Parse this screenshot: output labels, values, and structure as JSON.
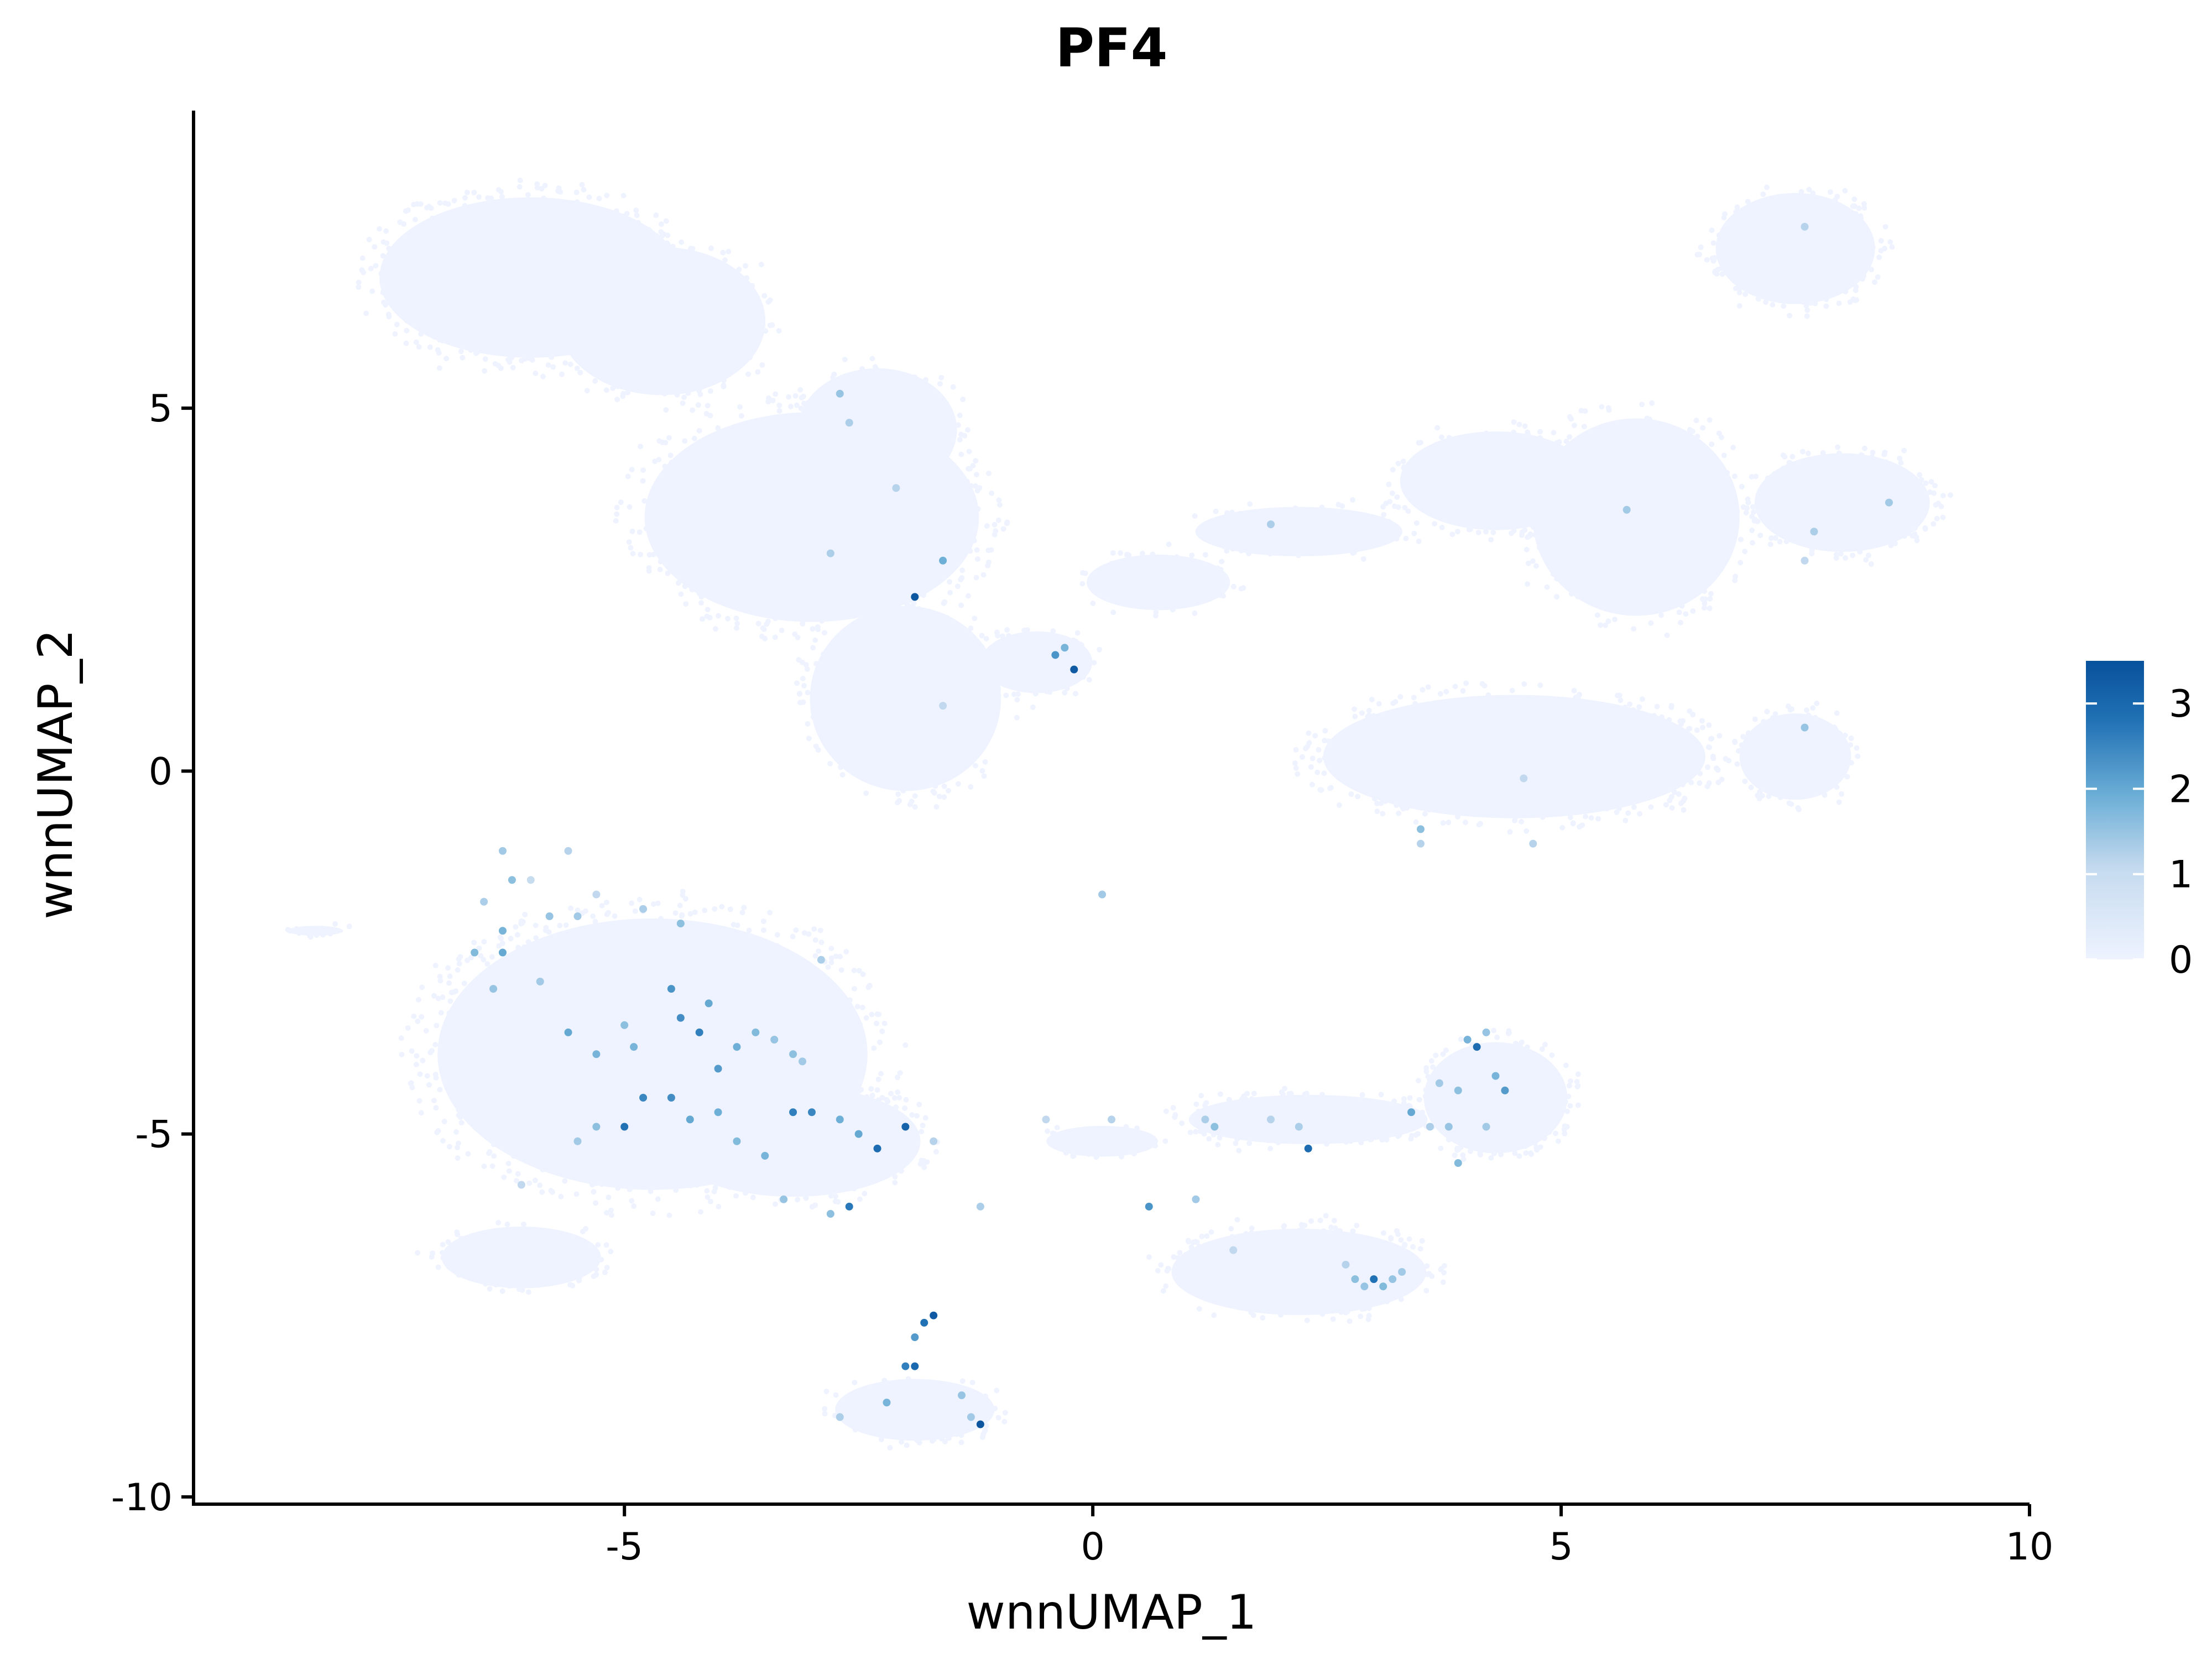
{
  "chart_data": {
    "type": "scatter",
    "title": "PF4",
    "xlabel": "wnnUMAP_1",
    "ylabel": "wnnUMAP_2",
    "xlim": [
      -9.6,
      10
    ],
    "ylim": [
      -10.1,
      9.1
    ],
    "x_ticks": [
      -5,
      0,
      5,
      10
    ],
    "x_tick_labels": [
      "-5",
      "0",
      "5",
      "10"
    ],
    "y_ticks": [
      -10,
      -5,
      0,
      5
    ],
    "y_tick_labels": [
      "-10",
      "-5",
      "0",
      "5"
    ],
    "grid": false,
    "legend": {
      "position": "right",
      "type": "colorbar",
      "min": 0,
      "max": 3.5,
      "ticks": [
        0,
        1,
        2,
        3
      ],
      "tick_labels": [
        "0",
        "1",
        "2",
        "3"
      ],
      "low_color": "#eef3ff",
      "high_color": "#08519c"
    },
    "background_color": "#eef3ff",
    "clusters": [
      {
        "cx": -6.0,
        "cy": 6.8,
        "rx": 1.9,
        "ry": 1.3,
        "n": 520
      },
      {
        "cx": -4.6,
        "cy": 6.2,
        "rx": 1.3,
        "ry": 1.2,
        "n": 260
      },
      {
        "cx": -3.0,
        "cy": 3.5,
        "rx": 2.1,
        "ry": 1.7,
        "n": 620
      },
      {
        "cx": -2.0,
        "cy": 1.0,
        "rx": 1.2,
        "ry": 1.5,
        "n": 260
      },
      {
        "cx": -2.3,
        "cy": 4.7,
        "rx": 1.0,
        "ry": 1.0,
        "n": 160
      },
      {
        "cx": -0.6,
        "cy": 1.5,
        "rx": 0.7,
        "ry": 0.5,
        "n": 100
      },
      {
        "cx": 0.7,
        "cy": 2.6,
        "rx": 0.9,
        "ry": 0.45,
        "n": 70
      },
      {
        "cx": 2.2,
        "cy": 3.3,
        "rx": 1.3,
        "ry": 0.4,
        "n": 80
      },
      {
        "cx": 4.3,
        "cy": 4.0,
        "rx": 1.2,
        "ry": 0.8,
        "n": 200
      },
      {
        "cx": 5.8,
        "cy": 3.5,
        "rx": 1.3,
        "ry": 1.6,
        "n": 320
      },
      {
        "cx": 7.5,
        "cy": 7.2,
        "rx": 1.0,
        "ry": 0.9,
        "n": 230
      },
      {
        "cx": 8.0,
        "cy": 3.7,
        "rx": 1.1,
        "ry": 0.8,
        "n": 220
      },
      {
        "cx": 7.5,
        "cy": 0.2,
        "rx": 0.7,
        "ry": 0.7,
        "n": 150
      },
      {
        "cx": 4.5,
        "cy": 0.2,
        "rx": 2.4,
        "ry": 1.0,
        "n": 520
      },
      {
        "cx": -4.7,
        "cy": -3.9,
        "rx": 2.7,
        "ry": 2.2,
        "n": 900
      },
      {
        "cx": -3.2,
        "cy": -5.1,
        "rx": 1.6,
        "ry": 0.9,
        "n": 260
      },
      {
        "cx": -6.1,
        "cy": -6.7,
        "rx": 1.0,
        "ry": 0.5,
        "n": 110
      },
      {
        "cx": -1.9,
        "cy": -8.8,
        "rx": 1.0,
        "ry": 0.5,
        "n": 110
      },
      {
        "cx": 2.3,
        "cy": -4.8,
        "rx": 1.5,
        "ry": 0.4,
        "n": 160
      },
      {
        "cx": 4.3,
        "cy": -4.5,
        "rx": 0.9,
        "ry": 0.9,
        "n": 220
      },
      {
        "cx": 2.2,
        "cy": -6.9,
        "rx": 1.6,
        "ry": 0.7,
        "n": 260
      },
      {
        "cx": 0.1,
        "cy": -5.1,
        "rx": 0.7,
        "ry": 0.25,
        "n": 40
      },
      {
        "cx": -8.3,
        "cy": -2.2,
        "rx": 0.35,
        "ry": 0.08,
        "n": 15
      }
    ],
    "expressing_points": [
      {
        "x": -6.3,
        "y": -1.1,
        "v": 1.4
      },
      {
        "x": -6.2,
        "y": -1.5,
        "v": 1.6
      },
      {
        "x": -6.0,
        "y": -1.5,
        "v": 1.0
      },
      {
        "x": -5.6,
        "y": -1.1,
        "v": 1.2
      },
      {
        "x": -6.5,
        "y": -1.8,
        "v": 1.3
      },
      {
        "x": -6.3,
        "y": -2.2,
        "v": 1.8
      },
      {
        "x": -6.3,
        "y": -2.5,
        "v": 2.0
      },
      {
        "x": -5.8,
        "y": -2.0,
        "v": 1.5
      },
      {
        "x": -5.5,
        "y": -2.0,
        "v": 1.4
      },
      {
        "x": -5.3,
        "y": -1.7,
        "v": 1.1
      },
      {
        "x": -4.8,
        "y": -1.9,
        "v": 1.3
      },
      {
        "x": -4.4,
        "y": -2.1,
        "v": 1.6
      },
      {
        "x": -6.6,
        "y": -2.5,
        "v": 1.7
      },
      {
        "x": -6.4,
        "y": -3.0,
        "v": 1.5
      },
      {
        "x": -5.9,
        "y": -2.9,
        "v": 1.4
      },
      {
        "x": -5.6,
        "y": -3.6,
        "v": 2.0
      },
      {
        "x": -5.3,
        "y": -3.9,
        "v": 1.8
      },
      {
        "x": -5.0,
        "y": -3.5,
        "v": 1.6
      },
      {
        "x": -4.9,
        "y": -3.8,
        "v": 1.8
      },
      {
        "x": -4.5,
        "y": -3.0,
        "v": 2.3
      },
      {
        "x": -4.4,
        "y": -3.4,
        "v": 2.4
      },
      {
        "x": -4.2,
        "y": -3.6,
        "v": 2.6
      },
      {
        "x": -4.1,
        "y": -3.2,
        "v": 2.0
      },
      {
        "x": -4.0,
        "y": -4.1,
        "v": 2.2
      },
      {
        "x": -3.8,
        "y": -3.8,
        "v": 1.9
      },
      {
        "x": -3.6,
        "y": -3.6,
        "v": 1.7
      },
      {
        "x": -3.4,
        "y": -3.7,
        "v": 1.5
      },
      {
        "x": -3.2,
        "y": -3.9,
        "v": 1.6
      },
      {
        "x": -3.1,
        "y": -4.0,
        "v": 1.4
      },
      {
        "x": -2.9,
        "y": -2.6,
        "v": 1.3
      },
      {
        "x": -5.0,
        "y": -4.9,
        "v": 2.8
      },
      {
        "x": -4.8,
        "y": -4.5,
        "v": 2.5
      },
      {
        "x": -4.5,
        "y": -4.5,
        "v": 2.4
      },
      {
        "x": -4.3,
        "y": -4.8,
        "v": 2.0
      },
      {
        "x": -4.0,
        "y": -4.7,
        "v": 1.9
      },
      {
        "x": -3.8,
        "y": -5.1,
        "v": 1.7
      },
      {
        "x": -3.5,
        "y": -5.3,
        "v": 1.8
      },
      {
        "x": -3.2,
        "y": -4.7,
        "v": 2.6
      },
      {
        "x": -3.0,
        "y": -4.7,
        "v": 2.5
      },
      {
        "x": -2.7,
        "y": -4.8,
        "v": 1.9
      },
      {
        "x": -2.5,
        "y": -5.0,
        "v": 2.0
      },
      {
        "x": -2.3,
        "y": -5.2,
        "v": 2.9
      },
      {
        "x": -2.0,
        "y": -4.9,
        "v": 3.1
      },
      {
        "x": -2.6,
        "y": -6.0,
        "v": 2.7
      },
      {
        "x": -3.3,
        "y": -5.9,
        "v": 1.5
      },
      {
        "x": -2.8,
        "y": -6.1,
        "v": 1.6
      },
      {
        "x": -1.7,
        "y": -5.1,
        "v": 1.2
      },
      {
        "x": -1.2,
        "y": -6.0,
        "v": 1.3
      },
      {
        "x": -5.5,
        "y": -5.1,
        "v": 1.4
      },
      {
        "x": -5.3,
        "y": -4.9,
        "v": 1.6
      },
      {
        "x": -6.1,
        "y": -5.7,
        "v": 1.1
      },
      {
        "x": -1.8,
        "y": -7.6,
        "v": 2.8
      },
      {
        "x": -1.7,
        "y": -7.5,
        "v": 3.3
      },
      {
        "x": -1.9,
        "y": -7.8,
        "v": 2.2
      },
      {
        "x": -2.0,
        "y": -8.2,
        "v": 2.6
      },
      {
        "x": -1.9,
        "y": -8.2,
        "v": 3.0
      },
      {
        "x": -2.2,
        "y": -8.7,
        "v": 1.8
      },
      {
        "x": -1.4,
        "y": -8.6,
        "v": 1.5
      },
      {
        "x": -1.3,
        "y": -8.9,
        "v": 1.4
      },
      {
        "x": -1.2,
        "y": -9.0,
        "v": 3.4
      },
      {
        "x": -2.7,
        "y": -8.9,
        "v": 1.3
      },
      {
        "x": -1.9,
        "y": 2.4,
        "v": 3.4
      },
      {
        "x": -1.6,
        "y": 2.9,
        "v": 1.9
      },
      {
        "x": -0.2,
        "y": 1.4,
        "v": 3.3
      },
      {
        "x": -0.4,
        "y": 1.6,
        "v": 2.3
      },
      {
        "x": -0.3,
        "y": 1.7,
        "v": 1.8
      },
      {
        "x": -2.7,
        "y": 5.2,
        "v": 1.5
      },
      {
        "x": -2.6,
        "y": 4.8,
        "v": 1.3
      },
      {
        "x": -2.1,
        "y": 3.9,
        "v": 1.2
      },
      {
        "x": -2.8,
        "y": 3.0,
        "v": 1.3
      },
      {
        "x": -1.6,
        "y": 0.9,
        "v": 1.1
      },
      {
        "x": 0.1,
        "y": -1.7,
        "v": 1.4
      },
      {
        "x": 1.9,
        "y": 3.4,
        "v": 1.3
      },
      {
        "x": 3.5,
        "y": -0.8,
        "v": 1.6
      },
      {
        "x": 3.5,
        "y": -1.0,
        "v": 1.2
      },
      {
        "x": 4.6,
        "y": -0.1,
        "v": 1.1
      },
      {
        "x": 4.7,
        "y": -1.0,
        "v": 1.2
      },
      {
        "x": 5.7,
        "y": 3.6,
        "v": 1.4
      },
      {
        "x": 7.6,
        "y": 7.5,
        "v": 1.2
      },
      {
        "x": 7.6,
        "y": 0.6,
        "v": 1.5
      },
      {
        "x": 7.7,
        "y": 3.3,
        "v": 1.3
      },
      {
        "x": 7.6,
        "y": 2.9,
        "v": 1.1
      },
      {
        "x": 8.5,
        "y": 3.7,
        "v": 1.4
      },
      {
        "x": 4.1,
        "y": -3.8,
        "v": 2.9
      },
      {
        "x": 4.0,
        "y": -3.7,
        "v": 1.8
      },
      {
        "x": 4.2,
        "y": -3.6,
        "v": 1.5
      },
      {
        "x": 4.4,
        "y": -4.4,
        "v": 2.2
      },
      {
        "x": 4.3,
        "y": -4.2,
        "v": 1.8
      },
      {
        "x": 3.9,
        "y": -4.4,
        "v": 1.6
      },
      {
        "x": 3.7,
        "y": -4.3,
        "v": 1.4
      },
      {
        "x": 3.4,
        "y": -4.7,
        "v": 2.0
      },
      {
        "x": 3.8,
        "y": -4.9,
        "v": 1.5
      },
      {
        "x": 3.6,
        "y": -4.9,
        "v": 1.3
      },
      {
        "x": 4.2,
        "y": -4.9,
        "v": 1.4
      },
      {
        "x": 3.9,
        "y": -5.4,
        "v": 1.7
      },
      {
        "x": 2.3,
        "y": -5.2,
        "v": 2.9
      },
      {
        "x": 2.2,
        "y": -4.9,
        "v": 1.3
      },
      {
        "x": 1.9,
        "y": -4.8,
        "v": 1.2
      },
      {
        "x": 1.3,
        "y": -4.9,
        "v": 1.6
      },
      {
        "x": 1.2,
        "y": -4.8,
        "v": 1.3
      },
      {
        "x": 0.6,
        "y": -6.0,
        "v": 2.3
      },
      {
        "x": 1.1,
        "y": -5.9,
        "v": 1.4
      },
      {
        "x": 1.5,
        "y": -6.6,
        "v": 1.1
      },
      {
        "x": 2.8,
        "y": -7.0,
        "v": 1.6
      },
      {
        "x": 2.9,
        "y": -7.1,
        "v": 1.5
      },
      {
        "x": 3.0,
        "y": -7.0,
        "v": 2.8
      },
      {
        "x": 3.1,
        "y": -7.1,
        "v": 1.7
      },
      {
        "x": 3.2,
        "y": -7.0,
        "v": 1.5
      },
      {
        "x": 3.3,
        "y": -6.9,
        "v": 1.4
      },
      {
        "x": 2.7,
        "y": -6.8,
        "v": 1.2
      },
      {
        "x": -0.5,
        "y": -4.8,
        "v": 1.1
      },
      {
        "x": 0.2,
        "y": -4.8,
        "v": 1.2
      }
    ]
  }
}
